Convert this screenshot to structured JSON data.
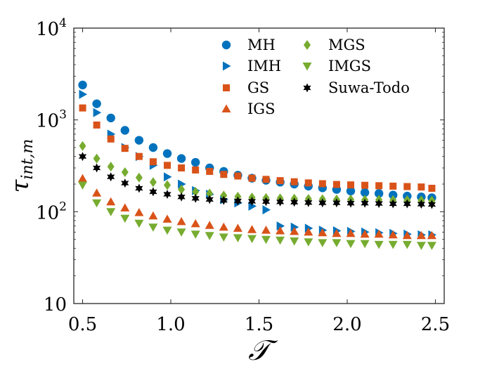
{
  "chart_data": {
    "type": "scatter",
    "xlabel": "𝒯",
    "ylabel": "τ",
    "ylabel_sub": "int,m",
    "xlim": [
      0.45,
      2.55
    ],
    "ylim_log10": [
      1,
      4
    ],
    "yscale": "log",
    "x_ticks": [
      {
        "value": 0.5,
        "label": "0.5"
      },
      {
        "value": 1.0,
        "label": "1.0"
      },
      {
        "value": 1.5,
        "label": "1.5"
      },
      {
        "value": 2.0,
        "label": "2.0"
      },
      {
        "value": 2.5,
        "label": "2.5"
      }
    ],
    "y_ticks": [
      {
        "value": 10,
        "base": "10",
        "exp": ""
      },
      {
        "value": 100,
        "base": "10",
        "exp": "2"
      },
      {
        "value": 1000,
        "base": "10",
        "exp": "3"
      },
      {
        "value": 10000,
        "base": "10",
        "exp": "4"
      }
    ],
    "legend_position": "top-right",
    "x": [
      0.5,
      0.58,
      0.66,
      0.74,
      0.82,
      0.9,
      0.98,
      1.06,
      1.14,
      1.22,
      1.3,
      1.38,
      1.46,
      1.54,
      1.62,
      1.7,
      1.78,
      1.86,
      1.94,
      2.02,
      2.1,
      2.18,
      2.26,
      2.34,
      2.42,
      2.48
    ],
    "series": [
      {
        "name": "MH",
        "marker": "circle",
        "color": "#0072BD",
        "values": [
          2400,
          1500,
          1050,
          770,
          600,
          500,
          430,
          380,
          345,
          300,
          275,
          250,
          232,
          220,
          210,
          200,
          190,
          182,
          175,
          168,
          162,
          158,
          152,
          148,
          145,
          142
        ]
      },
      {
        "name": "IMH",
        "marker": "triangle-right",
        "color": "#0072BD",
        "values": [
          1900,
          1200,
          700,
          500,
          400,
          320,
          240,
          200,
          170,
          155,
          135,
          125,
          115,
          105,
          70,
          68,
          66,
          63,
          62,
          61,
          60,
          59,
          58,
          57,
          56,
          56
        ]
      },
      {
        "name": "GS",
        "marker": "square",
        "color": "#D95319",
        "values": [
          1350,
          880,
          620,
          490,
          400,
          350,
          320,
          300,
          285,
          275,
          255,
          245,
          232,
          225,
          218,
          212,
          206,
          202,
          198,
          196,
          194,
          192,
          190,
          188,
          186,
          180
        ]
      },
      {
        "name": "IGS",
        "marker": "triangle-up",
        "color": "#D95319",
        "values": [
          230,
          160,
          128,
          110,
          98,
          90,
          83,
          78,
          74,
          71,
          68,
          66,
          64,
          63,
          62,
          61,
          60,
          59,
          58,
          58,
          57,
          57,
          56,
          55,
          55,
          55
        ]
      },
      {
        "name": "MGS",
        "marker": "diamond",
        "color": "#77AC30",
        "values": [
          520,
          380,
          310,
          270,
          235,
          210,
          195,
          175,
          165,
          158,
          150,
          146,
          143,
          141,
          140,
          139,
          138,
          137,
          136,
          136,
          135,
          135,
          134,
          134,
          133,
          132
        ]
      },
      {
        "name": "IMGS",
        "marker": "triangle-down",
        "color": "#77AC30",
        "values": [
          195,
          125,
          100,
          85,
          75,
          68,
          63,
          60,
          57,
          55,
          53,
          52,
          51,
          50,
          49,
          48,
          47,
          46,
          46,
          45,
          45,
          44,
          44,
          44,
          43,
          43
        ]
      },
      {
        "name": "Suwa-Todo",
        "marker": "hexagram",
        "color": "#000000",
        "values": [
          400,
          300,
          240,
          205,
          180,
          165,
          155,
          145,
          140,
          136,
          133,
          131,
          130,
          129,
          128,
          127,
          126,
          125,
          125,
          124,
          124,
          123,
          122,
          122,
          121,
          120
        ]
      }
    ]
  }
}
